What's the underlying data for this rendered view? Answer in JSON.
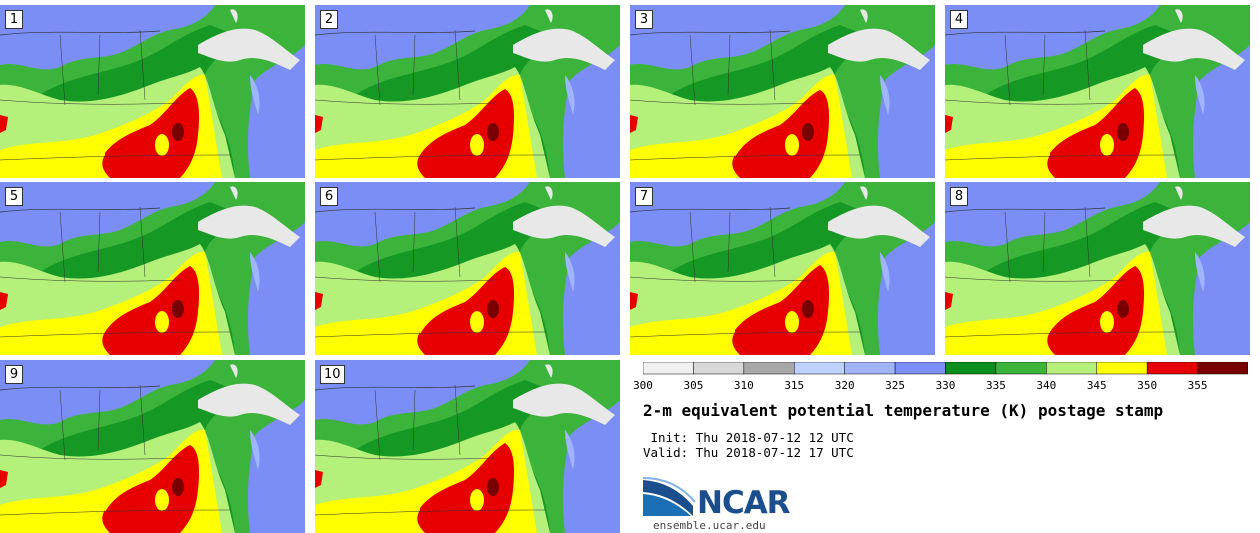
{
  "stamps": [
    "1",
    "2",
    "3",
    "4",
    "5",
    "6",
    "7",
    "8",
    "9",
    "10"
  ],
  "colorbar": {
    "ticks": [
      "300",
      "305",
      "310",
      "315",
      "320",
      "325",
      "330",
      "335",
      "340",
      "345",
      "350",
      "355"
    ],
    "colors": [
      "#f0f0f0",
      "#d8d8d8",
      "#a8a8a8",
      "#c0d0ff",
      "#a0b4ff",
      "#7b8ef6",
      "#0a8f1e",
      "#3cb43c",
      "#b4f07a",
      "#ffff00",
      "#e60000",
      "#780000"
    ]
  },
  "map_colors": {
    "cool": "#7b8ef6",
    "lightblue": "#a0b4ff",
    "darkgreen": "#0a8f1e",
    "green": "#3cb43c",
    "lightgreen": "#b4f07a",
    "yellow": "#ffff00",
    "red": "#e60000",
    "darkred": "#780000",
    "ice": "#e8e8e8"
  },
  "title": "2-m equivalent potential temperature (K) postage stamp",
  "init": " Init: Thu 2018-07-12 12 UTC",
  "valid": "Valid: Thu 2018-07-12 17 UTC",
  "logo": {
    "word": "NCAR",
    "url": "ensemble.ucar.edu"
  }
}
